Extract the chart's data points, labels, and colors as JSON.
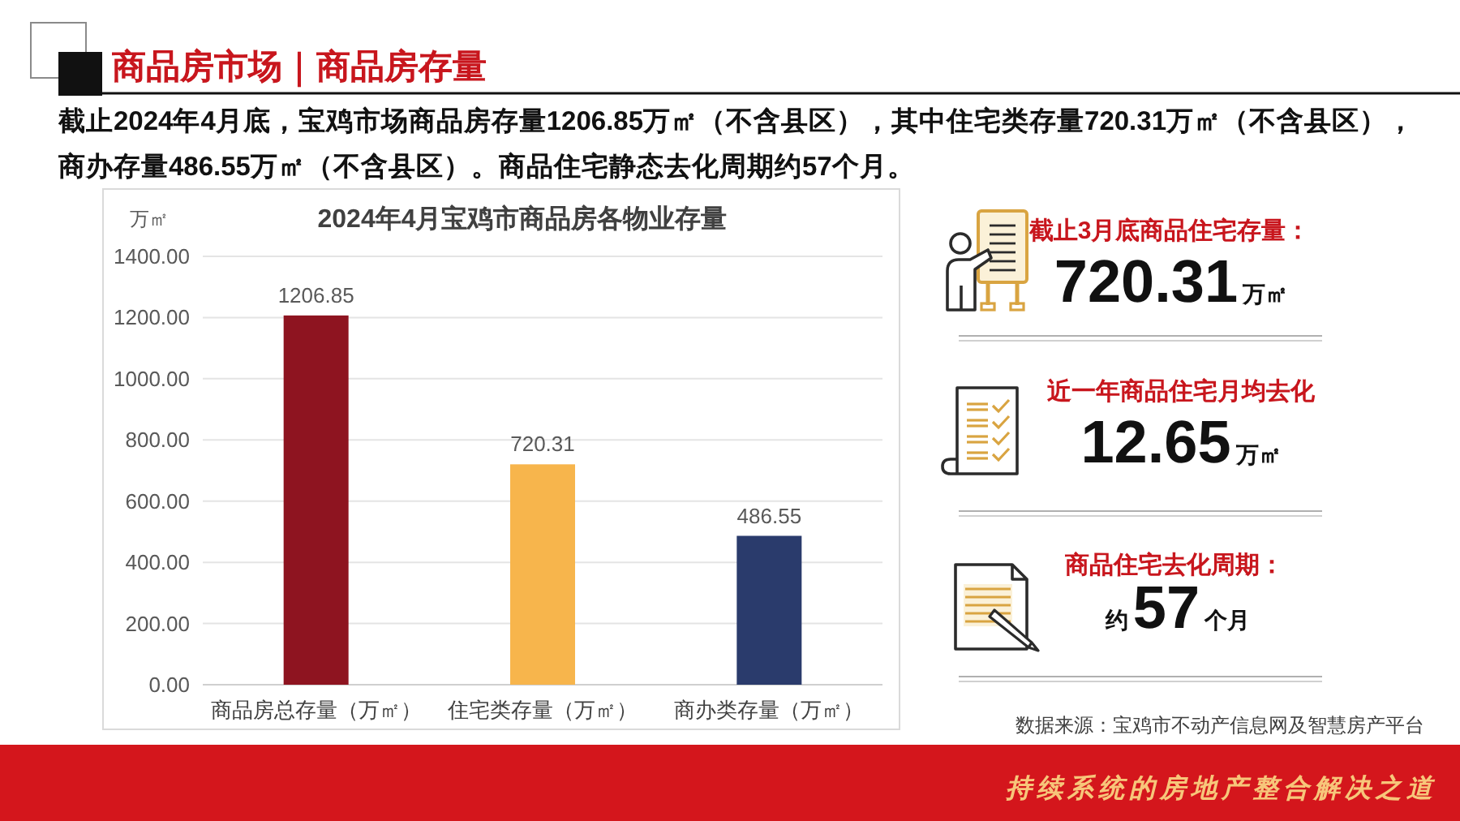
{
  "chart_data": [
    {
      "type": "other",
      "title": "商品房市场｜商品房存量",
      "subtitle": "截止2024年4月底，宝鸡市场商品房存量1206.85万㎡（不含县区），其中住宅类存量720.31万㎡（不含县区），商办存量486.55万㎡（不含县区）。商品住宅静态去化周期约57个月。",
      "annotations": [
        "数据来源：宝鸡市不动产信息网及智慧房产平台",
        "持续系统的房地产整合解决之道"
      ]
    },
    {
      "type": "bar",
      "title": "2024年4月宝鸡市商品房各物业存量",
      "ylabel": "万㎡",
      "categories": [
        "商品房总存量（万㎡）",
        "住宅类存量（万㎡）",
        "商办类存量（万㎡）"
      ],
      "values": [
        1206.85,
        720.31,
        486.55
      ],
      "colors": [
        "#8e1420",
        "#f7b54c",
        "#2a3b6c"
      ],
      "ylim": [
        0,
        1400
      ],
      "yticks": [
        {
          "value": 0,
          "label": "0.00"
        },
        {
          "value": 200,
          "label": "200.00"
        },
        {
          "value": 400,
          "label": "400.00"
        },
        {
          "value": 600,
          "label": "600.00"
        },
        {
          "value": 800,
          "label": "800.00"
        },
        {
          "value": 1000,
          "label": "1000.00"
        },
        {
          "value": 1200,
          "label": "1200.00"
        },
        {
          "value": 1400,
          "label": "1400.00"
        }
      ],
      "grid": "y",
      "data_labels": true
    },
    {
      "type": "other",
      "title": "截止3月底商品住宅存量：",
      "annotations": [
        "720.31",
        "万㎡"
      ]
    },
    {
      "type": "other",
      "title": "近一年商品住宅月均去化",
      "annotations": [
        "12.65",
        "万㎡"
      ]
    },
    {
      "type": "other",
      "title": "商品住宅去化周期：",
      "annotations": [
        "约",
        "57",
        "个月"
      ]
    }
  ]
}
